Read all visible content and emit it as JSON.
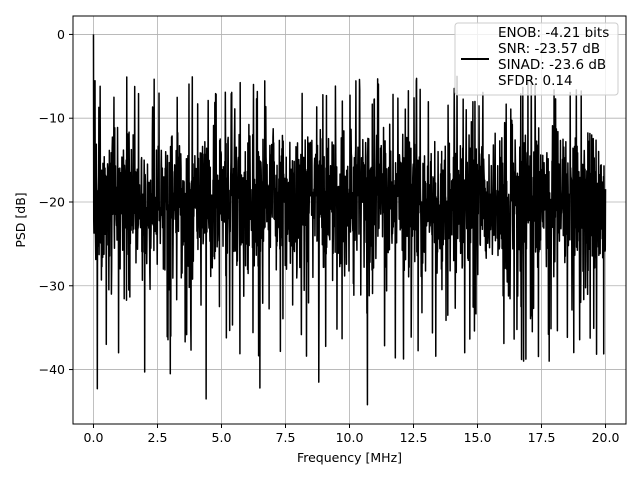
{
  "chart_data": {
    "type": "line",
    "title": "",
    "xlabel": "Frequency [MHz]",
    "ylabel": "PSD [dB]",
    "xlim": [
      -0.8,
      20.8
    ],
    "ylim": [
      -46.5,
      2.2
    ],
    "xticks": [
      0.0,
      2.5,
      5.0,
      7.5,
      10.0,
      12.5,
      15.0,
      17.5,
      20.0
    ],
    "xtick_labels": [
      "0.0",
      "2.5",
      "5.0",
      "7.5",
      "10.0",
      "12.5",
      "15.0",
      "17.5",
      "20.0"
    ],
    "yticks": [
      0,
      -10,
      -20,
      -30,
      -40
    ],
    "ytick_labels": [
      "0",
      "−10",
      "−20",
      "−30",
      "−40"
    ],
    "grid": true,
    "legend_position": "top-right",
    "series": [
      {
        "name": "ENOB: -4.21 bits\nSNR: -23.57 dB\nSINAD: -23.6 dB\nSFDR: 0.14",
        "color": "#000000",
        "x_range": [
          0.0,
          20.0
        ],
        "noise_floor_db": [
          -10,
          -30
        ],
        "peak_db": 0.0,
        "notable_points": [
          {
            "x": 0.0,
            "y": 0.0
          },
          {
            "x": 0.15,
            "y": -42.3
          },
          {
            "x": 0.5,
            "y": -37.0
          },
          {
            "x": 2.0,
            "y": -40.3
          },
          {
            "x": 3.0,
            "y": -40.5
          },
          {
            "x": 4.4,
            "y": -43.5
          },
          {
            "x": 6.5,
            "y": -42.2
          },
          {
            "x": 8.8,
            "y": -41.5
          },
          {
            "x": 10.7,
            "y": -44.2
          },
          {
            "x": 14.5,
            "y": -38.0
          },
          {
            "x": 16.8,
            "y": -39.0
          },
          {
            "x": 17.8,
            "y": -39.0
          },
          {
            "x": 11.1,
            "y": -5.3
          },
          {
            "x": 14.2,
            "y": -5.0
          },
          {
            "x": 17.1,
            "y": -5.2
          }
        ]
      }
    ],
    "legend_lines": [
      "ENOB: -4.21 bits",
      "SNR: -23.57 dB",
      "SINAD: -23.6 dB",
      "SFDR: 0.14"
    ]
  }
}
